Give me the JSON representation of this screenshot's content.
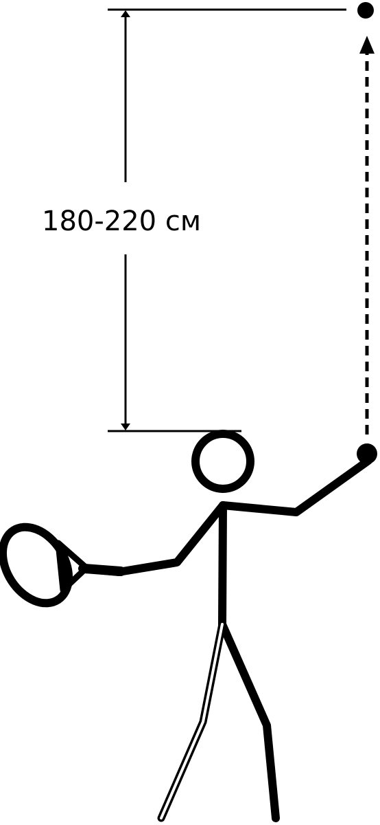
{
  "diagram": {
    "measurement_label": "180-220 см",
    "colors": {
      "ink": "#000000",
      "background": "#ffffff"
    },
    "icons": {
      "figure": "stick-figure-serving",
      "racket": "tennis-racket",
      "ball": "tennis-ball"
    }
  }
}
